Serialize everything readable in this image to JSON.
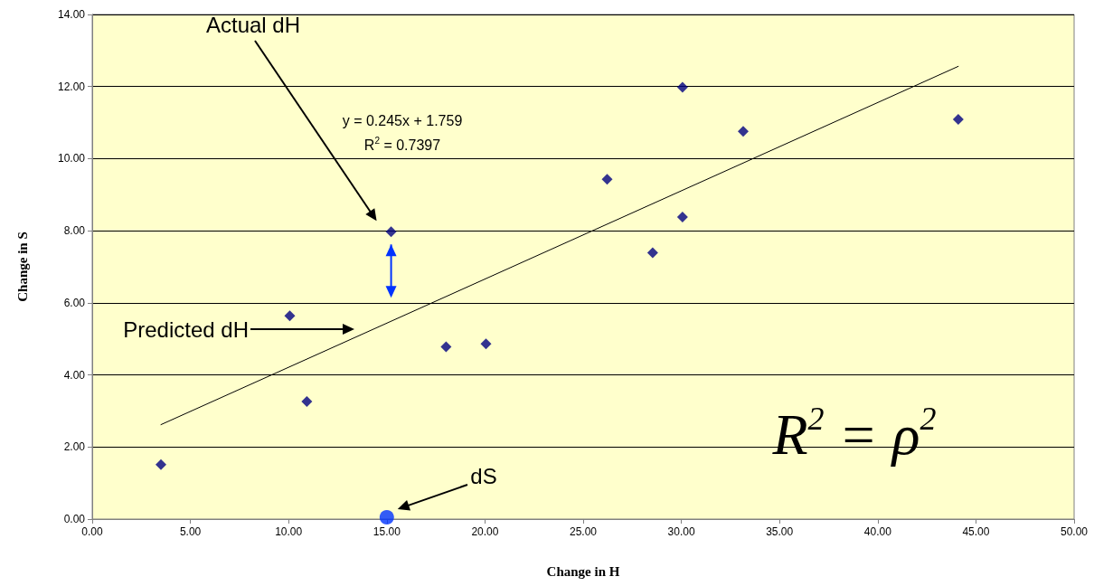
{
  "chart_data": {
    "type": "scatter",
    "xlabel": "Change in H",
    "ylabel": "Change in S",
    "xlim": [
      0,
      50
    ],
    "xticks": [
      {
        "value": 0,
        "label": "0.00"
      },
      {
        "value": 5,
        "label": "5.00"
      },
      {
        "value": 10,
        "label": "10.00"
      },
      {
        "value": 15,
        "label": "15.00"
      },
      {
        "value": 20,
        "label": "20.00"
      },
      {
        "value": 25,
        "label": "25.00"
      },
      {
        "value": 30,
        "label": "30.00"
      },
      {
        "value": 35,
        "label": "35.00"
      },
      {
        "value": 40,
        "label": "40.00"
      },
      {
        "value": 45,
        "label": "45.00"
      },
      {
        "value": 50,
        "label": "50.00"
      }
    ],
    "ylim": [
      0,
      14
    ],
    "yticks": [
      {
        "value": 0,
        "label": "0.00"
      },
      {
        "value": 2,
        "label": "2.00"
      },
      {
        "value": 4,
        "label": "4.00"
      },
      {
        "value": 6,
        "label": "6.00"
      },
      {
        "value": 8,
        "label": "8.00"
      },
      {
        "value": 10,
        "label": "10.00"
      },
      {
        "value": 12,
        "label": "12.00"
      },
      {
        "value": 14,
        "label": "14.00"
      }
    ],
    "grid": "y",
    "series": [
      {
        "color": "#000080",
        "marker": "diamond",
        "x": [
          3.5,
          10.06,
          10.93,
          15.22,
          18.02,
          20.05,
          26.22,
          28.54,
          30.06,
          30.06,
          33.15,
          44.1
        ],
        "values": [
          1.51,
          5.64,
          3.26,
          7.97,
          4.78,
          4.86,
          9.43,
          7.39,
          11.98,
          8.38,
          10.76,
          11.09
        ]
      },
      {
        "color": "#0033ff",
        "marker": "circle",
        "x": [
          15.0
        ],
        "values": [
          0.05
        ]
      },
      {
        "type": "line",
        "color": "#000000",
        "marker": "none",
        "x": [
          3.5,
          44.1
        ],
        "values": [
          2.62,
          12.56
        ]
      }
    ],
    "annotations": [
      "Actual dH",
      "Predicted dH",
      "dS",
      "y = 0.245x + 1.759",
      "R$^{2}$ = 0.7397",
      "R$^{2}$ = ρ$^{2}$"
    ]
  }
}
